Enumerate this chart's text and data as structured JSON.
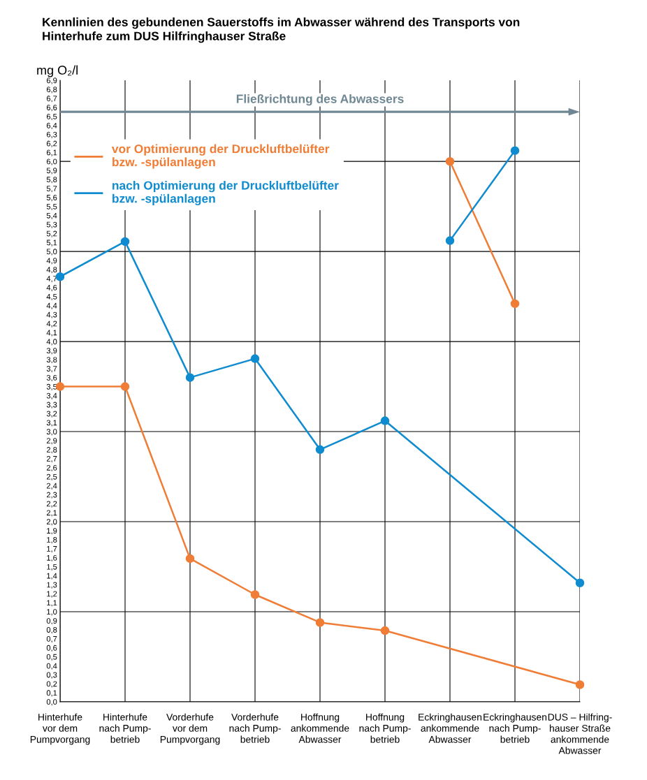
{
  "chart_data": {
    "type": "line",
    "title": "Kennlinien des gebundenen Sauerstoffs im Abwasser während des Transports von\nHinterhufe zum DUS Hilfringhauser Straße",
    "ylabel": "mg O₂/l",
    "annotations": [
      "Fließrichtung des Abwassers"
    ],
    "categories": [
      "Hinterhufe\nvor dem\nPumpvorgang",
      "Hinterhufe\nnach Pump-\nbetrieb",
      "Vorderhufe\nvor dem\nPumpvorgang",
      "Vorderhufe\nnach Pump-\nbetrieb",
      "Hoffnung\nankommende\nAbwasser",
      "Hoffnung\nnach Pump-\nbetrieb",
      "Eckringhausen\nankommende\nAbwasser",
      "Eckringhausen\nnach Pump-\nbetrieb",
      "DUS – Hilfring-\nhauser Straße\nankommende\nAbwasser"
    ],
    "series": [
      {
        "name": "vor Optimierung der Druckluftbelüfter\nbzw. -spülanlagen",
        "color": "#ef7d36",
        "values": [
          3.5,
          3.5,
          1.59,
          1.19,
          0.88,
          0.79,
          null,
          null,
          0.19
        ]
      },
      {
        "name": "nach Optimierung der Druckluftbelüfter\nbzw. -spülanlagen",
        "color": "#0f8bcf",
        "values": [
          4.72,
          5.11,
          3.6,
          3.81,
          2.8,
          3.12,
          null,
          null,
          1.32
        ]
      },
      {
        "color": "#ef7d36",
        "values": [
          null,
          null,
          null,
          null,
          null,
          null,
          6.0,
          4.42,
          null
        ]
      },
      {
        "color": "#0f8bcf",
        "values": [
          null,
          null,
          null,
          null,
          null,
          null,
          5.12,
          6.12,
          null
        ]
      }
    ],
    "ylim": [
      0,
      6.9
    ],
    "yticks": [
      {
        "value": 0.0,
        "label": "0,0"
      },
      {
        "value": 0.1,
        "label": "0,1"
      },
      {
        "value": 0.2,
        "label": "0,2"
      },
      {
        "value": 0.3,
        "label": "0,3"
      },
      {
        "value": 0.4,
        "label": "0,4"
      },
      {
        "value": 0.5,
        "label": "0,5"
      },
      {
        "value": 0.6,
        "label": "0,6"
      },
      {
        "value": 0.7,
        "label": "0,7"
      },
      {
        "value": 0.8,
        "label": "0,8"
      },
      {
        "value": 0.9,
        "label": "0,9"
      },
      {
        "value": 1.0,
        "label": "1,0"
      },
      {
        "value": 1.1,
        "label": "1,1"
      },
      {
        "value": 1.2,
        "label": "1,2"
      },
      {
        "value": 1.3,
        "label": "1,3"
      },
      {
        "value": 1.4,
        "label": "1,4"
      },
      {
        "value": 1.5,
        "label": "1,5"
      },
      {
        "value": 1.6,
        "label": "1,6"
      },
      {
        "value": 1.7,
        "label": "1,7"
      },
      {
        "value": 1.8,
        "label": "1,8"
      },
      {
        "value": 1.9,
        "label": "1,9"
      },
      {
        "value": 2.0,
        "label": "2,0"
      },
      {
        "value": 2.1,
        "label": "2,1"
      },
      {
        "value": 2.2,
        "label": "2,2"
      },
      {
        "value": 2.3,
        "label": "2,3"
      },
      {
        "value": 2.4,
        "label": "2,4"
      },
      {
        "value": 2.5,
        "label": "2,5"
      },
      {
        "value": 2.6,
        "label": "2,6"
      },
      {
        "value": 2.7,
        "label": "2,7"
      },
      {
        "value": 2.8,
        "label": "2,8"
      },
      {
        "value": 2.9,
        "label": "2,9"
      },
      {
        "value": 3.0,
        "label": "3,0"
      },
      {
        "value": 3.1,
        "label": "3,1"
      },
      {
        "value": 3.2,
        "label": "3,2"
      },
      {
        "value": 3.3,
        "label": "3,3"
      },
      {
        "value": 3.4,
        "label": "3,4"
      },
      {
        "value": 3.5,
        "label": "3,5"
      },
      {
        "value": 3.6,
        "label": "3,6"
      },
      {
        "value": 3.7,
        "label": "3,7"
      },
      {
        "value": 3.8,
        "label": "3,8"
      },
      {
        "value": 3.9,
        "label": "3,9"
      },
      {
        "value": 4.0,
        "label": "4,0"
      },
      {
        "value": 4.1,
        "label": "4,1"
      },
      {
        "value": 4.2,
        "label": "4,2"
      },
      {
        "value": 4.3,
        "label": "4,3"
      },
      {
        "value": 4.4,
        "label": "4,4"
      },
      {
        "value": 4.5,
        "label": "4,5"
      },
      {
        "value": 4.6,
        "label": "4,6"
      },
      {
        "value": 4.7,
        "label": "4,7"
      },
      {
        "value": 4.8,
        "label": "4,8"
      },
      {
        "value": 4.9,
        "label": "4,9"
      },
      {
        "value": 5.0,
        "label": "5,0"
      },
      {
        "value": 5.1,
        "label": "5,1"
      },
      {
        "value": 5.2,
        "label": "5,2"
      },
      {
        "value": 5.3,
        "label": "5,3"
      },
      {
        "value": 5.4,
        "label": "5,4"
      },
      {
        "value": 5.5,
        "label": "5,5"
      },
      {
        "value": 5.6,
        "label": "5,6"
      },
      {
        "value": 5.7,
        "label": "5,7"
      },
      {
        "value": 5.8,
        "label": "5,8"
      },
      {
        "value": 5.9,
        "label": "5,9"
      },
      {
        "value": 6.0,
        "label": "6,0"
      },
      {
        "value": 6.1,
        "label": "6,1"
      },
      {
        "value": 6.2,
        "label": "6,2"
      },
      {
        "value": 6.3,
        "label": "6,3"
      },
      {
        "value": 6.4,
        "label": "6,4"
      },
      {
        "value": 6.5,
        "label": "6,5"
      },
      {
        "value": 6.6,
        "label": "6,6"
      },
      {
        "value": 6.7,
        "label": "6,7"
      },
      {
        "value": 6.8,
        "label": "6,8"
      },
      {
        "value": 6.9,
        "label": "6,9"
      }
    ],
    "grid": true,
    "legend": "top left",
    "marker": "circle",
    "line_style": "solid"
  }
}
